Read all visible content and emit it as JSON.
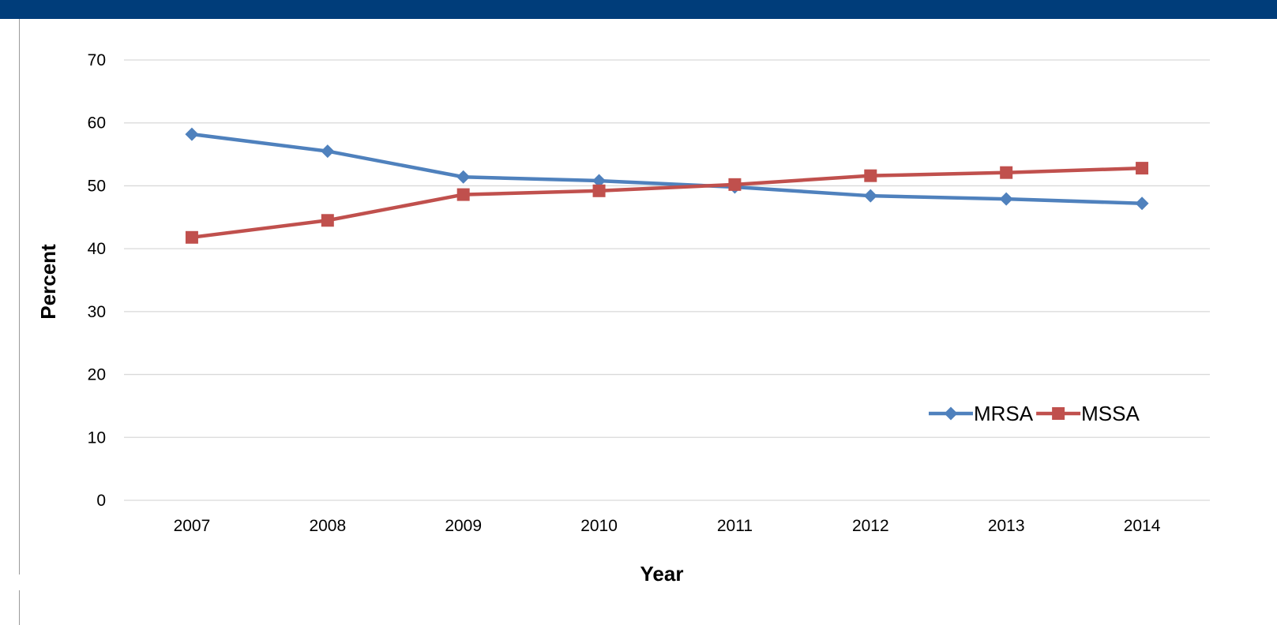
{
  "chart_data": {
    "type": "line",
    "title": "",
    "xlabel": "Year",
    "ylabel": "Percent",
    "categories": [
      "2007",
      "2008",
      "2009",
      "2010",
      "2011",
      "2012",
      "2013",
      "2014"
    ],
    "ylim": [
      0,
      70
    ],
    "yticks": [
      0,
      10,
      20,
      30,
      40,
      50,
      60,
      70
    ],
    "grid": true,
    "legend_position": "lower-right",
    "series": [
      {
        "name": "MRSA",
        "marker": "diamond",
        "color": "#4f81bd",
        "values": [
          58.2,
          55.5,
          51.4,
          50.8,
          49.8,
          48.4,
          47.9,
          47.2
        ]
      },
      {
        "name": "MSSA",
        "marker": "square",
        "color": "#c0504d",
        "values": [
          41.8,
          44.5,
          48.6,
          49.2,
          50.2,
          51.6,
          52.1,
          52.8
        ]
      }
    ]
  },
  "header_color": "#003d7a"
}
